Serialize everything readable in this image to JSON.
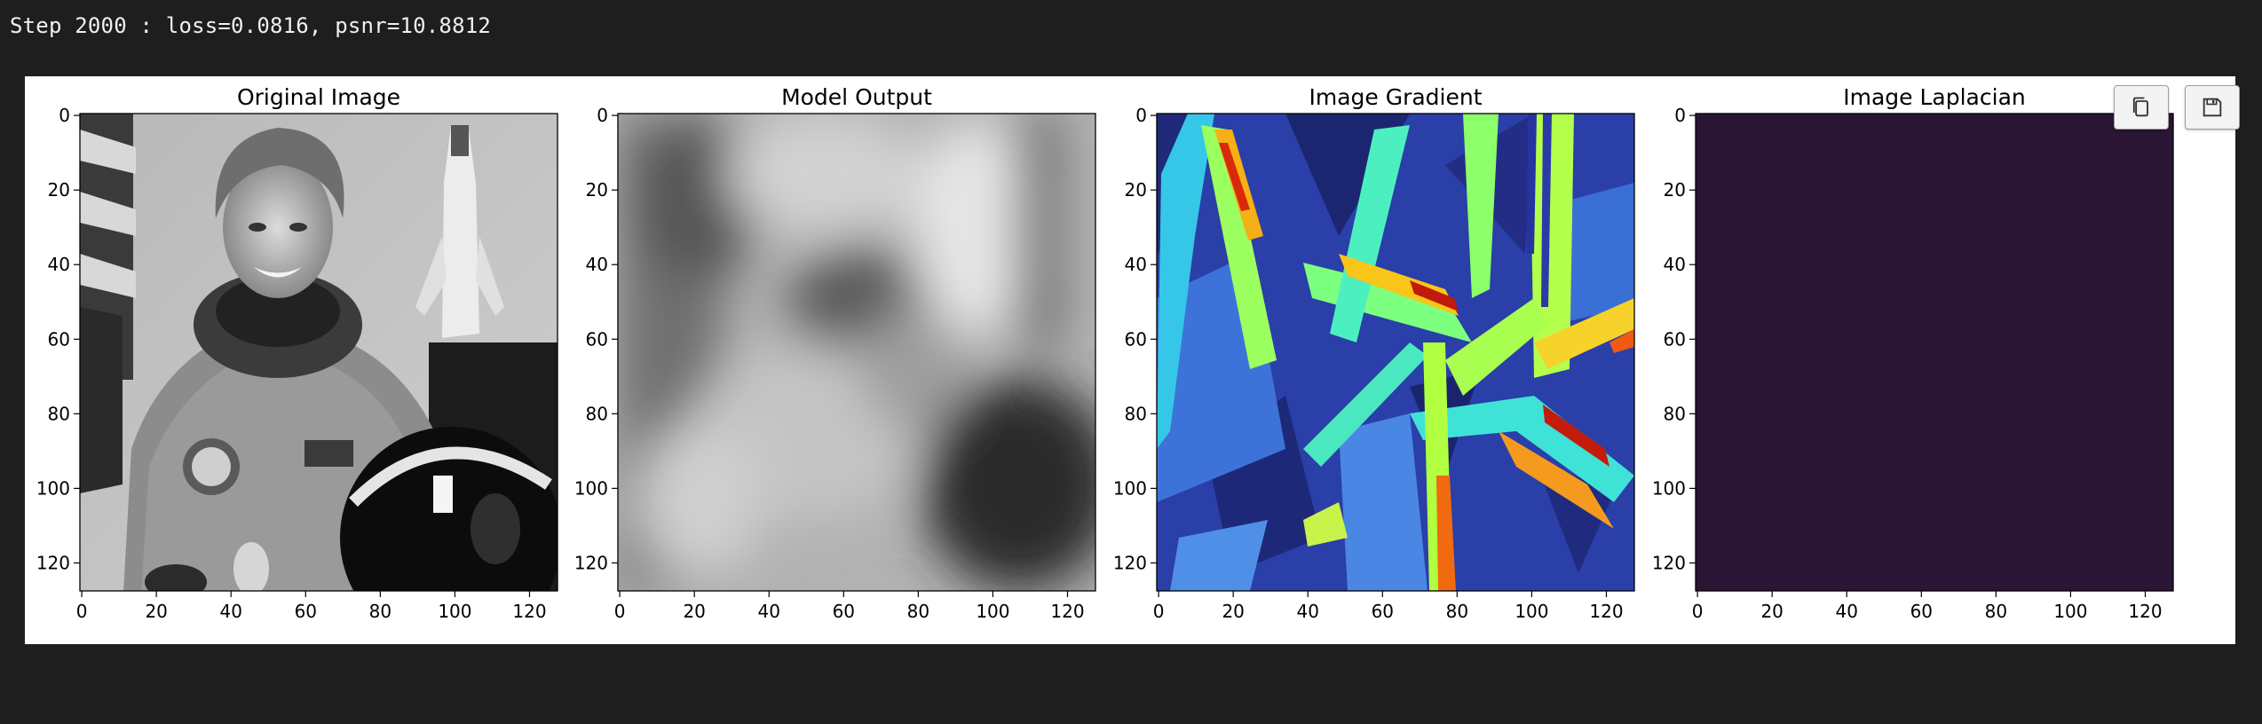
{
  "output": {
    "stdout_line": "Step 2000 : loss=0.0816, psnr=10.8812"
  },
  "figure": {
    "panels": [
      {
        "title": "Original Image",
        "kind": "grayscale-photo"
      },
      {
        "title": "Model Output",
        "kind": "blurred-grayscale"
      },
      {
        "title": "Image Gradient",
        "kind": "jet-colormap"
      },
      {
        "title": "Image Laplacian",
        "kind": "uniform-dark-purple"
      }
    ],
    "x_ticks": [
      "0",
      "20",
      "40",
      "60",
      "80",
      "100",
      "120"
    ],
    "y_ticks": [
      "0",
      "20",
      "40",
      "60",
      "80",
      "100",
      "120"
    ],
    "laplacian_color": "#2a1535"
  },
  "toolbar": {
    "copy_icon": "copy-icon",
    "save_icon": "save-icon"
  },
  "chart_data": [
    {
      "type": "heatmap",
      "title": "Original Image",
      "xlim": [
        0,
        128
      ],
      "ylim": [
        128,
        0
      ],
      "colormap": "gray"
    },
    {
      "type": "heatmap",
      "title": "Model Output",
      "xlim": [
        0,
        128
      ],
      "ylim": [
        128,
        0
      ],
      "colormap": "gray"
    },
    {
      "type": "heatmap",
      "title": "Image Gradient",
      "xlim": [
        0,
        128
      ],
      "ylim": [
        128,
        0
      ],
      "colormap": "jet"
    },
    {
      "type": "heatmap",
      "title": "Image Laplacian",
      "xlim": [
        0,
        128
      ],
      "ylim": [
        128,
        0
      ],
      "colormap": "viridis-low"
    }
  ]
}
